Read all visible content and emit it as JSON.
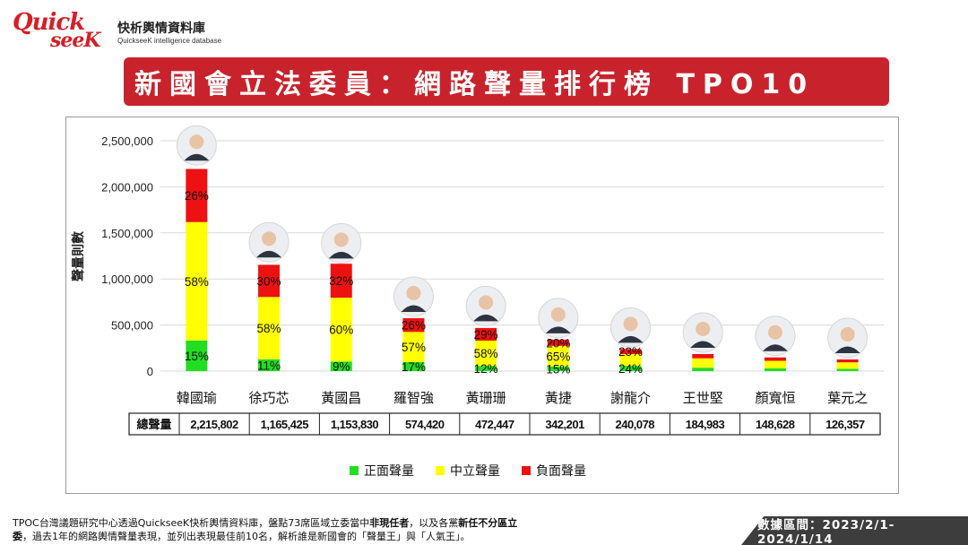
{
  "logo": {
    "mark_top": "Quick",
    "mark_bottom": "seeK",
    "name": "快析輿情資料庫",
    "subtitle": "QuickseeK intelligence database"
  },
  "title": "新國會立法委員：網路聲量排行榜  TPO10",
  "colors": {
    "positive": "#22dd22",
    "neutral": "#ffff00",
    "negative": "#ee1111",
    "banner": "#c8232c",
    "grid": "#d9d9d9"
  },
  "chart_data": {
    "type": "bar",
    "stacked": true,
    "ylabel": "聲量則數",
    "ylim": [
      0,
      2500000
    ],
    "yticks": [
      0,
      500000,
      1000000,
      1500000,
      2000000,
      2500000
    ],
    "ytick_labels": [
      "0",
      "500,000",
      "1,000,000",
      "1,500,000",
      "2,000,000",
      "2,500,000"
    ],
    "grid": true,
    "legend_position": "bottom",
    "categories": [
      "韓國瑜",
      "徐巧芯",
      "黃國昌",
      "羅智強",
      "黃珊珊",
      "黃捷",
      "謝龍介",
      "王世堅",
      "顏寬恒",
      "葉元之"
    ],
    "totals": [
      2215802,
      1165425,
      1153830,
      574420,
      472447,
      342201,
      240078,
      184983,
      148628,
      126357
    ],
    "total_labels": [
      "2,215,802",
      "1,165,425",
      "1,153,830",
      "574,420",
      "472,447",
      "342,201",
      "240,078",
      "184,983",
      "148,628",
      "126,357"
    ],
    "series": [
      {
        "name": "正面聲量",
        "color_key": "positive",
        "pct": [
          15,
          11,
          9,
          17,
          12,
          15,
          24,
          20,
          20,
          20
        ],
        "pct_labels": [
          "15%",
          "11%",
          "9%",
          "17%",
          "12%",
          "15%",
          "24%",
          "",
          "",
          ""
        ]
      },
      {
        "name": "中立聲量",
        "color_key": "neutral",
        "pct": [
          58,
          58,
          60,
          57,
          58,
          65,
          53,
          55,
          55,
          55
        ],
        "pct_labels": [
          "58%",
          "58%",
          "60%",
          "57%",
          "58%",
          "65%",
          "",
          "",
          "",
          ""
        ]
      },
      {
        "name": "負面聲量",
        "color_key": "negative",
        "pct": [
          26,
          30,
          32,
          26,
          29,
          20,
          23,
          25,
          25,
          25
        ],
        "pct_labels": [
          "26%",
          "30%",
          "32%",
          "26%",
          "29%",
          "20%",
          "23%",
          "",
          "",
          ""
        ]
      }
    ],
    "table_header": "總聲量"
  },
  "footnote": {
    "line1_a": "TPOC台灣議題研究中心透過QuickseeK快析輿情資料庫，盤點73席區域立委當中",
    "line1_b": "非現任者",
    "line1_c": "，以及各黨",
    "line1_d": "新任不分區立",
    "line2_a": "委",
    "line2_b": "，過去1年的網路輿情聲量表現，並列出表現最佳前10名，解析誰是新國會的「聲量王」與「人氣王」。"
  },
  "date_range": "數據區間：2023/2/1-2024/1/14"
}
